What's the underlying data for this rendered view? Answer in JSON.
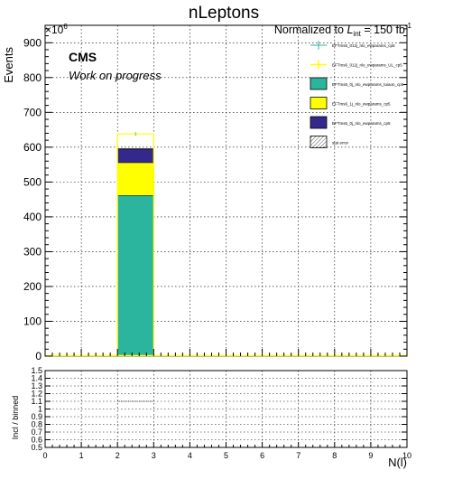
{
  "chart_data": [
    {
      "type": "bar",
      "stacked": true,
      "title": "nLeptons",
      "lumi_label": "Normalized to L_int = 150 fb^-1",
      "lumi_parts": {
        "prefix": "Normalized to ",
        "symbol": "L",
        "subscript": "int",
        "suffix": " = 150 fb",
        "superscript": "-1"
      },
      "ylabel": "Events",
      "y_multiplier": "×10",
      "y_multiplier_exp": "6",
      "ylim": [
        0,
        950
      ],
      "xlim": [
        0,
        10
      ],
      "yticks": [
        0,
        100,
        200,
        300,
        400,
        500,
        600,
        700,
        800,
        900
      ],
      "xticks": [
        0,
        1,
        2,
        3,
        4,
        5,
        6,
        7,
        8,
        9,
        10
      ],
      "grid": true,
      "cms_label": "CMS",
      "status_label": "Work on progress",
      "legend_position": "top-right",
      "bin": [
        2,
        3
      ],
      "stack": [
        {
          "name": "EFTms6_0j_nlo_ewparams_tuiaon_cp5",
          "value": 462,
          "color": "#2bb59e"
        },
        {
          "name": "EFTms6_1j_nlo_ewparams_cp5",
          "value": 94,
          "color": "#ffff00"
        },
        {
          "name": "EFTms6_0j_nlo_ewparams_cp5",
          "value": 39,
          "color": "#34298a"
        }
      ],
      "points": [
        {
          "name": "EFTms6_012j_nlo_ewparams_cp5",
          "x": 2.5,
          "y": 638,
          "color": "#2bb59e",
          "style": "marker"
        },
        {
          "name": "EFTms6_012j_nlo_ewparams_UL_cp5",
          "x": 2.5,
          "y": 638,
          "color": "#ffff00",
          "style": "line"
        }
      ],
      "stat_error_label": "stat error",
      "legend": [
        {
          "label": "EFTms6_012j_nlo_ewparams_cp5",
          "kind": "marker",
          "color": "#2bb59e"
        },
        {
          "label": "EFTms6_012j_nlo_ewparams_UL_cp5",
          "kind": "line",
          "color": "#ffff00"
        },
        {
          "label": "EFTms6_0j_nlo_ewparams_tuiaon_cp5",
          "kind": "box",
          "color": "#2bb59e"
        },
        {
          "label": "EFTms6_1j_nlo_ewparams_cp5",
          "kind": "box",
          "color": "#ffff00"
        },
        {
          "label": "EFTms6_0j_nlo_ewparams_cp5",
          "kind": "box",
          "color": "#34298a"
        },
        {
          "label": "stat error",
          "kind": "hatch",
          "color": "#888888"
        }
      ]
    },
    {
      "type": "line",
      "ylabel": "Incl / binned",
      "xlabel": "N(l)",
      "ylim": [
        0.5,
        1.5
      ],
      "xlim": [
        0,
        10
      ],
      "yticks": [
        0.5,
        0.6,
        0.7,
        0.8,
        0.9,
        1,
        1.1,
        1.2,
        1.3,
        1.4,
        1.5
      ],
      "xticks": [
        0,
        1,
        2,
        3,
        4,
        5,
        6,
        7,
        8,
        9,
        10
      ],
      "grid": true,
      "series": [
        {
          "x": [
            2,
            3
          ],
          "y": [
            1.1,
            1.1
          ]
        }
      ]
    }
  ]
}
